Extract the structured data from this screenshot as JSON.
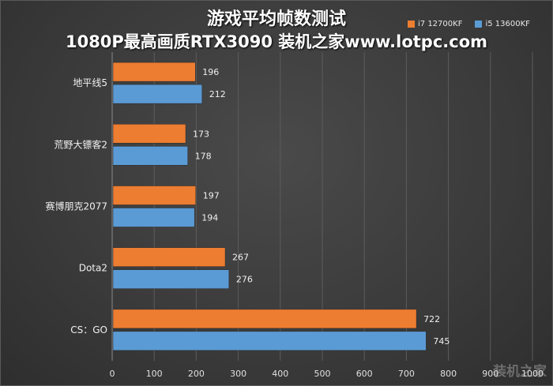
{
  "chart_data": {
    "type": "bar",
    "orientation": "horizontal",
    "title": "游戏平均帧数测试",
    "subtitle": "1080P最高画质RTX3090  装机之家www.lotpc.com",
    "categories": [
      "地平线5",
      "荒野大镖客2",
      "赛博朋克2077",
      "Dota2",
      "CS：GO"
    ],
    "series": [
      {
        "name": "i7 12700KF",
        "color": "#ed7d31",
        "values": [
          196,
          173,
          197,
          267,
          722
        ]
      },
      {
        "name": "i5 13600KF",
        "color": "#5b9bd5",
        "values": [
          212,
          178,
          194,
          276,
          745
        ]
      }
    ],
    "xlim": [
      0,
      1000
    ],
    "x_ticks": [
      0,
      100,
      200,
      300,
      400,
      500,
      600,
      700,
      800,
      900,
      1000
    ],
    "xlabel": "",
    "ylabel": "",
    "grid": true,
    "legend_position": "top-right"
  },
  "watermark": "装机之家"
}
